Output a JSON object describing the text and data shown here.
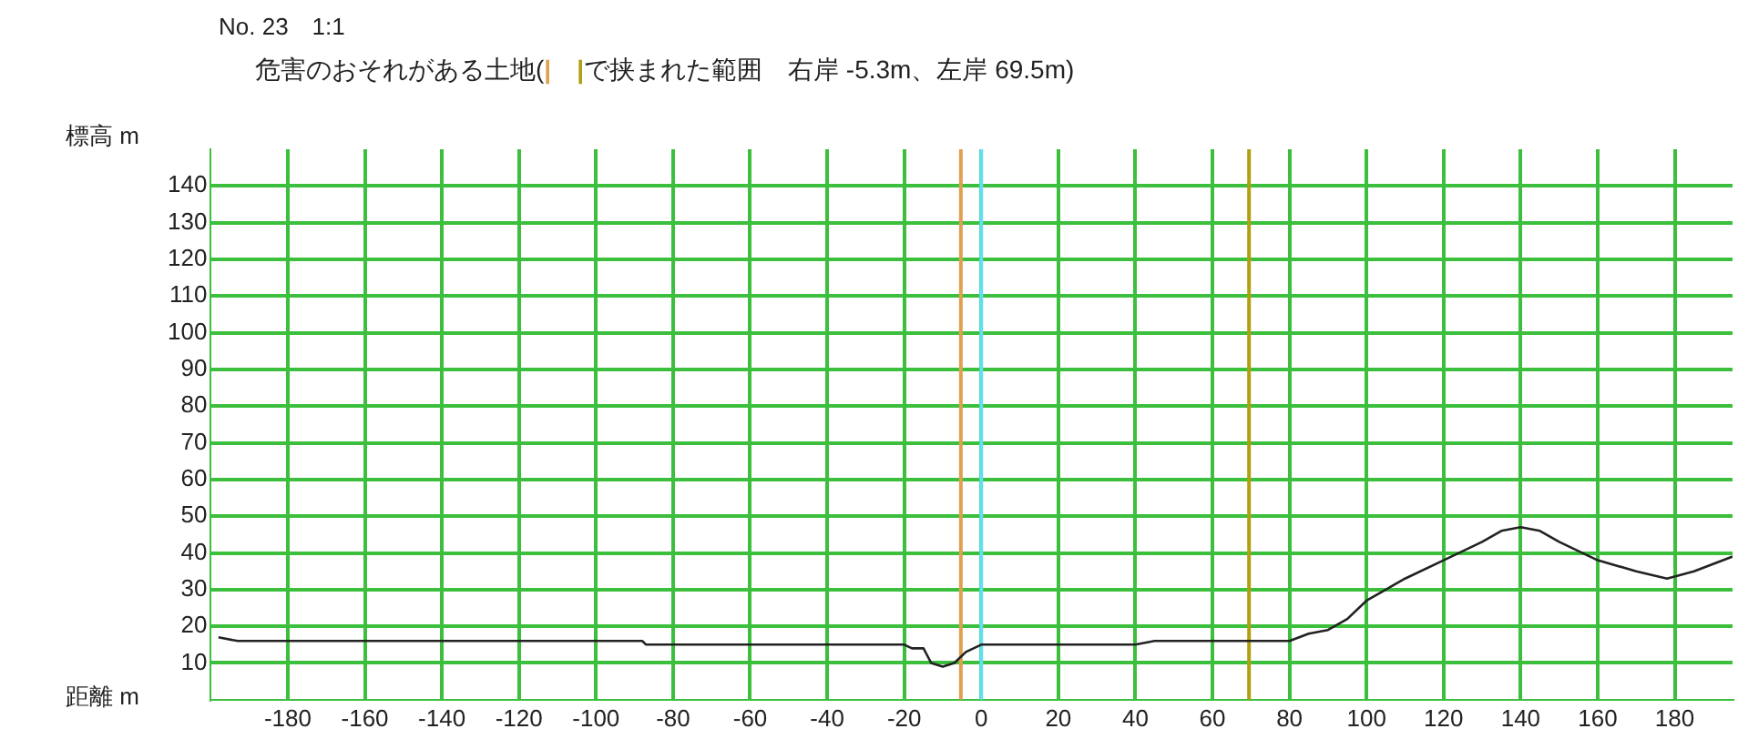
{
  "chart_data": {
    "type": "line",
    "subtitle": "No. 23　1:1",
    "title": "危害のおそれがある土地(|　|で挟まれた範囲　右岸 -5.3m、左岸 69.5m)",
    "xlabel": "距離 m",
    "ylabel": "標高 m",
    "x": [
      -198,
      -193,
      -185,
      -170,
      -150,
      -120,
      -100,
      -88,
      -87,
      -60,
      -20,
      -18,
      -15,
      -13,
      -10,
      -7,
      -4,
      -2,
      0,
      20,
      40,
      45,
      60,
      80,
      85,
      90,
      95,
      100,
      110,
      120,
      130,
      135,
      140,
      145,
      150,
      160,
      170,
      178,
      185,
      195
    ],
    "series": [
      {
        "color": "#222222",
        "values": [
          17,
          16,
          16,
          16,
          16,
          16,
          16,
          16,
          15,
          15,
          15,
          14,
          14,
          10,
          9,
          10,
          13,
          14,
          15,
          15,
          15,
          16,
          16,
          16,
          18,
          19,
          22,
          27,
          33,
          38,
          43,
          46,
          47,
          46,
          43,
          38,
          35,
          33,
          35,
          39
        ]
      }
    ],
    "xlim": [
      -200,
      195
    ],
    "xticks": [
      -180,
      -160,
      -140,
      -120,
      -100,
      -80,
      -60,
      -40,
      -20,
      0,
      20,
      40,
      60,
      80,
      100,
      120,
      140,
      160,
      180
    ],
    "ylim": [
      0,
      150
    ],
    "yticks": [
      10,
      20,
      30,
      40,
      50,
      60,
      70,
      80,
      90,
      100,
      110,
      120,
      130,
      140
    ],
    "ref_lines": [
      {
        "axis": "x",
        "value": -5.3,
        "color": "#e0a050"
      },
      {
        "axis": "x",
        "value": 69.5,
        "color": "#b0a010"
      },
      {
        "axis": "x",
        "value": 0,
        "color": "#60e0f0"
      }
    ],
    "grid": true,
    "legend": false,
    "marker": "none",
    "line_style": "solid"
  }
}
